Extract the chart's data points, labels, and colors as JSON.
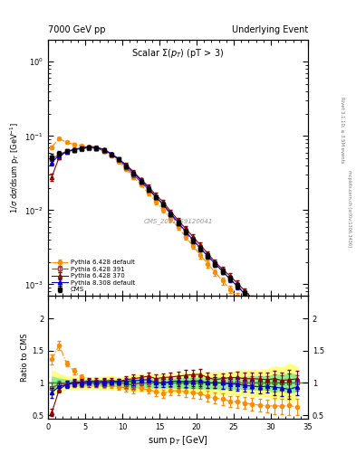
{
  "title_left": "7000 GeV pp",
  "title_right": "Underlying Event",
  "plot_title": "Scalar $\\Sigma(p_T)$ (pT > 3)",
  "xlabel": "sum p$_T$ [GeV]",
  "ylabel_main": "1/$\\sigma$ d$\\sigma$/dsum p$_T$ [GeV$^{-1}$]",
  "ylabel_ratio": "Ratio to CMS",
  "watermark": "CMS_2011_S9120041",
  "right_label1": "Rivet 3.1.10; ≥ 3.5M events",
  "right_label2": "mcplots.cern.ch [arXiv:1306.3436]",
  "xlim": [
    0,
    35
  ],
  "ylim_main": [
    0.0007,
    2.0
  ],
  "ylim_ratio": [
    0.44,
    2.35
  ],
  "cms_x": [
    0.5,
    1.5,
    2.5,
    3.5,
    4.5,
    5.5,
    6.5,
    7.5,
    8.5,
    9.5,
    10.5,
    11.5,
    12.5,
    13.5,
    14.5,
    15.5,
    16.5,
    17.5,
    18.5,
    19.5,
    20.5,
    21.5,
    22.5,
    23.5,
    24.5,
    25.5,
    26.5,
    27.5,
    28.5,
    29.5,
    30.5,
    31.5,
    32.5,
    33.5
  ],
  "cms_y": [
    0.052,
    0.058,
    0.063,
    0.065,
    0.068,
    0.07,
    0.069,
    0.064,
    0.056,
    0.048,
    0.039,
    0.031,
    0.024,
    0.019,
    0.015,
    0.012,
    0.0088,
    0.0067,
    0.0051,
    0.0039,
    0.003,
    0.0024,
    0.0019,
    0.0015,
    0.0012,
    0.00096,
    0.00077,
    0.00061,
    0.00049,
    0.00039,
    0.00031,
    0.00025,
    0.0002,
    0.00016
  ],
  "cms_yerr": [
    0.005,
    0.004,
    0.003,
    0.003,
    0.003,
    0.003,
    0.003,
    0.003,
    0.003,
    0.002,
    0.002,
    0.002,
    0.0015,
    0.0012,
    0.001,
    0.0008,
    0.0006,
    0.0005,
    0.0004,
    0.0003,
    0.00025,
    0.0002,
    0.00016,
    0.00013,
    0.0001,
    9e-05,
    7e-05,
    6e-05,
    5e-05,
    4e-05,
    4e-05,
    3e-05,
    3e-05,
    2e-05
  ],
  "py6_370_x": [
    0.5,
    1.5,
    2.5,
    3.5,
    4.5,
    5.5,
    6.5,
    7.5,
    8.5,
    9.5,
    10.5,
    11.5,
    12.5,
    13.5,
    14.5,
    15.5,
    16.5,
    17.5,
    18.5,
    19.5,
    20.5,
    21.5,
    22.5,
    23.5,
    24.5,
    25.5,
    26.5,
    27.5,
    28.5,
    29.5,
    30.5,
    31.5,
    32.5,
    33.5
  ],
  "py6_370_y": [
    0.028,
    0.052,
    0.062,
    0.066,
    0.069,
    0.072,
    0.071,
    0.066,
    0.058,
    0.049,
    0.041,
    0.033,
    0.026,
    0.021,
    0.016,
    0.013,
    0.0096,
    0.0074,
    0.0057,
    0.0044,
    0.0034,
    0.0026,
    0.002,
    0.0016,
    0.0013,
    0.00104,
    0.00082,
    0.00065,
    0.00052,
    0.00041,
    0.00033,
    0.00026,
    0.00021,
    0.00017
  ],
  "py6_370_yerr": [
    0.003,
    0.003,
    0.003,
    0.003,
    0.003,
    0.003,
    0.003,
    0.003,
    0.002,
    0.002,
    0.002,
    0.002,
    0.001,
    0.001,
    0.001,
    0.0008,
    0.0006,
    0.0005,
    0.0004,
    0.0003,
    0.00025,
    0.0002,
    0.00016,
    0.00013,
    0.0001,
    9e-05,
    7e-05,
    6e-05,
    5e-05,
    4e-05,
    4e-05,
    3e-05,
    3e-05,
    2e-05
  ],
  "py6_391_x": [
    0.5,
    1.5,
    2.5,
    3.5,
    4.5,
    5.5,
    6.5,
    7.5,
    8.5,
    9.5,
    10.5,
    11.5,
    12.5,
    13.5,
    14.5,
    15.5,
    16.5,
    17.5,
    18.5,
    19.5,
    20.5,
    21.5,
    22.5,
    23.5,
    24.5,
    25.5,
    26.5,
    27.5,
    28.5,
    29.5,
    30.5,
    31.5,
    32.5,
    33.5
  ],
  "py6_391_y": [
    0.048,
    0.057,
    0.062,
    0.064,
    0.067,
    0.069,
    0.068,
    0.063,
    0.056,
    0.048,
    0.038,
    0.03,
    0.024,
    0.019,
    0.015,
    0.012,
    0.0088,
    0.0067,
    0.0051,
    0.0039,
    0.003,
    0.0024,
    0.0019,
    0.0015,
    0.0012,
    0.00096,
    0.00077,
    0.00061,
    0.00049,
    0.00039,
    0.00031,
    0.00025,
    0.0002,
    0.00016
  ],
  "py6_391_yerr": [
    0.004,
    0.003,
    0.003,
    0.003,
    0.003,
    0.003,
    0.003,
    0.003,
    0.002,
    0.002,
    0.002,
    0.002,
    0.001,
    0.001,
    0.001,
    0.0008,
    0.0006,
    0.0005,
    0.0004,
    0.0003,
    0.00025,
    0.0002,
    0.00016,
    0.00013,
    0.0001,
    9e-05,
    7e-05,
    6e-05,
    5e-05,
    4e-05,
    4e-05,
    3e-05,
    3e-05,
    2e-05
  ],
  "py6_def_x": [
    0.5,
    1.5,
    2.5,
    3.5,
    4.5,
    5.5,
    6.5,
    7.5,
    8.5,
    9.5,
    10.5,
    11.5,
    12.5,
    13.5,
    14.5,
    15.5,
    16.5,
    17.5,
    18.5,
    19.5,
    20.5,
    21.5,
    22.5,
    23.5,
    24.5,
    25.5,
    26.5,
    27.5,
    28.5,
    29.5,
    30.5,
    31.5,
    32.5,
    33.5
  ],
  "py6_def_y": [
    0.071,
    0.092,
    0.082,
    0.077,
    0.074,
    0.071,
    0.068,
    0.062,
    0.054,
    0.045,
    0.036,
    0.028,
    0.022,
    0.017,
    0.013,
    0.01,
    0.0077,
    0.0059,
    0.0044,
    0.0033,
    0.0025,
    0.0019,
    0.00145,
    0.00112,
    0.00086,
    0.00068,
    0.00053,
    0.00041,
    0.00032,
    0.00025,
    0.0002,
    0.00016,
    0.00013,
    0.0001
  ],
  "py6_def_yerr": [
    0.004,
    0.004,
    0.003,
    0.003,
    0.003,
    0.003,
    0.003,
    0.003,
    0.002,
    0.002,
    0.002,
    0.002,
    0.001,
    0.001,
    0.001,
    0.0008,
    0.0006,
    0.0005,
    0.0004,
    0.0003,
    0.00025,
    0.0002,
    0.00016,
    0.00013,
    0.0001,
    9e-05,
    7e-05,
    6e-05,
    5e-05,
    4e-05,
    4e-05,
    3e-05,
    3e-05,
    2e-05
  ],
  "py8_def_x": [
    0.5,
    1.5,
    2.5,
    3.5,
    4.5,
    5.5,
    6.5,
    7.5,
    8.5,
    9.5,
    10.5,
    11.5,
    12.5,
    13.5,
    14.5,
    15.5,
    16.5,
    17.5,
    18.5,
    19.5,
    20.5,
    21.5,
    22.5,
    23.5,
    24.5,
    25.5,
    26.5,
    27.5,
    28.5,
    29.5,
    30.5,
    31.5,
    32.5,
    33.5
  ],
  "py8_def_y": [
    0.044,
    0.055,
    0.061,
    0.065,
    0.068,
    0.071,
    0.069,
    0.065,
    0.057,
    0.049,
    0.04,
    0.032,
    0.025,
    0.02,
    0.015,
    0.012,
    0.009,
    0.0069,
    0.0052,
    0.004,
    0.0031,
    0.0024,
    0.0019,
    0.0015,
    0.00118,
    0.00094,
    0.00074,
    0.00058,
    0.00046,
    0.00037,
    0.00029,
    0.00023,
    0.00018,
    0.00015
  ],
  "py8_def_yerr": [
    0.004,
    0.003,
    0.003,
    0.003,
    0.003,
    0.003,
    0.003,
    0.003,
    0.002,
    0.002,
    0.002,
    0.002,
    0.001,
    0.001,
    0.001,
    0.0008,
    0.0006,
    0.0005,
    0.0004,
    0.0003,
    0.00025,
    0.0002,
    0.00016,
    0.00013,
    0.0001,
    9e-05,
    7e-05,
    6e-05,
    5e-05,
    4e-05,
    4e-05,
    3e-05,
    3e-05,
    2e-05
  ],
  "color_cms": "#000000",
  "color_py6_370": "#8b0000",
  "color_py6_391": "#8b4444",
  "color_py6_def": "#ff8c00",
  "color_py8_def": "#0000cc",
  "ratio_band_yellow": "#ffff80",
  "ratio_band_green": "#90ee90",
  "ratio_line_color": "#00bb00"
}
